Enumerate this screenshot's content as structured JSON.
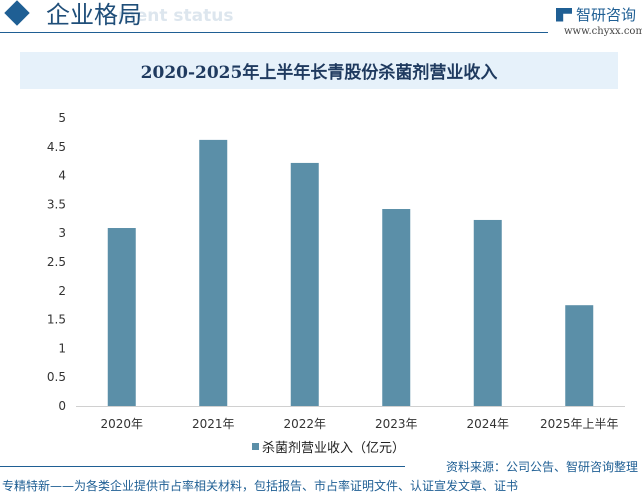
{
  "header": {
    "title": "企业格局",
    "subtitle": "ment status",
    "logo_text": "智研咨询",
    "logo_url": "www.chyxx.com"
  },
  "chart_data": {
    "type": "bar",
    "title": "2020-2025年上半年长青股份杀菌剂营业收入",
    "categories": [
      "2020年",
      "2021年",
      "2022年",
      "2023年",
      "2024年",
      "2025年上半年"
    ],
    "series": [
      {
        "name": "杀菌剂营业收入（亿元）",
        "values": [
          3.09,
          4.62,
          4.22,
          3.42,
          3.23,
          1.75
        ]
      }
    ],
    "ylim": [
      0,
      5
    ],
    "yticks": [
      "0",
      "0.5",
      "1",
      "1.5",
      "2",
      "2.5",
      "3",
      "3.5",
      "4",
      "4.5",
      "5"
    ],
    "color": "#5b8fa8",
    "grid": false,
    "legend": "bottom"
  },
  "footer": {
    "source": "资料来源：公司公告、智研咨询整理",
    "tagline": "专精特新——为各类企业提供市占率相关材料，包括报告、市占率证明文件、认证宣发文章、证书"
  }
}
